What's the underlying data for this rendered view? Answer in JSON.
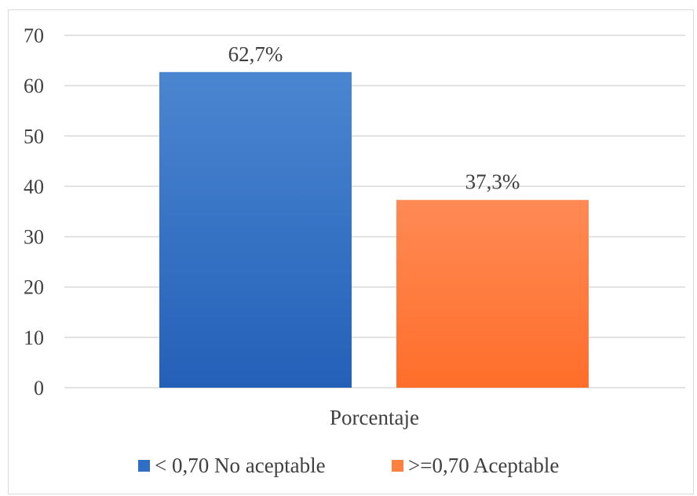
{
  "chart_data": {
    "type": "bar",
    "categories": [
      "Porcentaje"
    ],
    "series": [
      {
        "name": "< 0,70 No aceptable",
        "values": [
          62.7
        ],
        "label": "62,7%",
        "color": "#2e6ec4"
      },
      {
        "name": ">=0,70 Aceptable",
        "values": [
          37.3
        ],
        "label": "37,3%",
        "color": "#ff7f3f"
      }
    ],
    "yticks": [
      "0",
      "10",
      "20",
      "30",
      "40",
      "50",
      "60",
      "70"
    ],
    "ylim": [
      0,
      70
    ],
    "grid": true,
    "legend_position": "bottom"
  }
}
